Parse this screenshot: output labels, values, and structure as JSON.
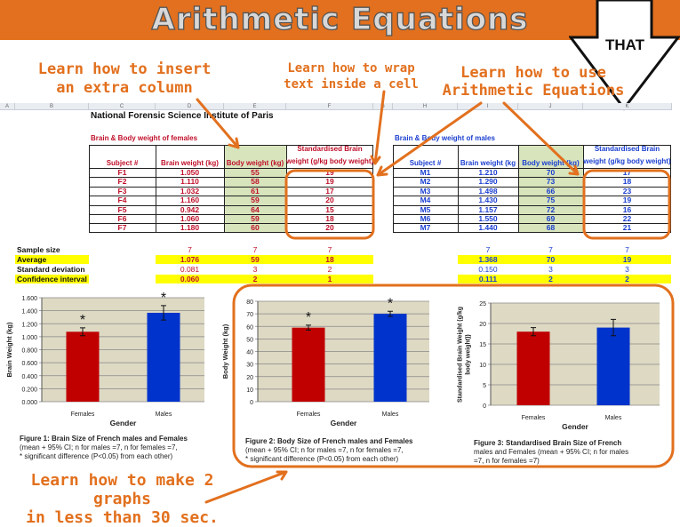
{
  "header": {
    "title": "Arithmetic Equations",
    "arrow_label": "THAT"
  },
  "notes": {
    "insert_column": [
      "Learn how to insert",
      "an extra column"
    ],
    "wrap_text": [
      "Learn how to wrap",
      "text inside a cell"
    ],
    "arithmetic": [
      "Learn how to use",
      "Arithmetic Equations"
    ],
    "graphs": [
      "Learn how to make 2 graphs",
      "in less than 30 sec."
    ]
  },
  "colors": {
    "accent": "#e2701e",
    "female": "#c00000",
    "male": "#0033cc",
    "highlight": "#ffff00",
    "body_col": "#d7e4bc"
  },
  "sheet": {
    "columns": [
      "A",
      "B",
      "C",
      "D",
      "E",
      "F",
      "G",
      "H",
      "I",
      "J",
      "K"
    ],
    "title": "National Forensic Science Institute of Paris",
    "females": {
      "heading": "Brain & Body weight of females",
      "headers": [
        "Subject #",
        "Brain weight (kg)",
        "Body weight (kg)",
        "Standardised Brain",
        "weight (g/kg body weight)"
      ],
      "rows": [
        [
          "F1",
          "1.050",
          "55",
          "19"
        ],
        [
          "F2",
          "1.110",
          "58",
          "19"
        ],
        [
          "F3",
          "1.032",
          "61",
          "17"
        ],
        [
          "F4",
          "1.160",
          "59",
          "20"
        ],
        [
          "F5",
          "0.942",
          "64",
          "15"
        ],
        [
          "F6",
          "1.060",
          "59",
          "18"
        ],
        [
          "F7",
          "1.180",
          "60",
          "20"
        ]
      ],
      "summary": [
        [
          "7",
          "7",
          "7"
        ],
        [
          "1.076",
          "59",
          "18"
        ],
        [
          "0.081",
          "3",
          "2"
        ],
        [
          "0.060",
          "2",
          "1"
        ]
      ]
    },
    "males": {
      "heading": "Brain & Body weight of males",
      "headers": [
        "Subject #",
        "Brain weight (kg",
        "Body weight (kg)",
        "Standardised Brain",
        "weight (g/kg body weight)"
      ],
      "rows": [
        [
          "M1",
          "1.210",
          "70",
          "17"
        ],
        [
          "M2",
          "1.290",
          "73",
          "18"
        ],
        [
          "M3",
          "1.498",
          "66",
          "23"
        ],
        [
          "M4",
          "1.430",
          "75",
          "19"
        ],
        [
          "M5",
          "1.157",
          "72",
          "16"
        ],
        [
          "M6",
          "1.550",
          "69",
          "22"
        ],
        [
          "M7",
          "1.440",
          "68",
          "21"
        ]
      ],
      "summary": [
        [
          "7",
          "7",
          "7"
        ],
        [
          "1.368",
          "70",
          "19"
        ],
        [
          "0.150",
          "3",
          "3"
        ],
        [
          "0.111",
          "2",
          "2"
        ]
      ]
    },
    "summary_labels": [
      "Sample size",
      "Average",
      "Standard deviation",
      "Confidence interval"
    ]
  },
  "chart_data": [
    {
      "type": "bar",
      "categories": [
        "Females",
        "Males"
      ],
      "values": [
        1.076,
        1.368
      ],
      "errors": [
        0.06,
        0.111
      ],
      "significance": [
        "*",
        "*"
      ],
      "xlabel": "Gender",
      "ylabel": "Brain Weight (kg)",
      "ylim": [
        0,
        1.6
      ],
      "ticks": [
        "0.000",
        "0.200",
        "0.400",
        "0.600",
        "0.800",
        "1.000",
        "1.200",
        "1.400",
        "1.600"
      ],
      "grid": true,
      "caption": {
        "bold": "Figure 1: Brain Size of French males and Females",
        "text": [
          "(mean + 95% CI; n for males =7, n for females =7,",
          "* significant difference (P<0.05) from each other)"
        ]
      }
    },
    {
      "type": "bar",
      "categories": [
        "Females",
        "Males"
      ],
      "values": [
        59,
        70
      ],
      "errors": [
        2,
        2
      ],
      "significance": [
        "*",
        "*"
      ],
      "xlabel": "Gender",
      "ylabel": "Body Weight (kg)",
      "ylim": [
        0,
        80
      ],
      "ticks": [
        "0",
        "10",
        "20",
        "30",
        "40",
        "50",
        "60",
        "70",
        "80"
      ],
      "grid": true,
      "caption": {
        "bold": "Figure 2: Body Size of French males and Females",
        "text": [
          "(mean + 95% CI; n for males =7, n for females =7,",
          "* significant difference (P<0.05) from each other)"
        ]
      }
    },
    {
      "type": "bar",
      "categories": [
        "Females",
        "Males"
      ],
      "values": [
        18,
        19
      ],
      "errors": [
        1,
        2
      ],
      "significance": [
        "",
        ""
      ],
      "xlabel": "Gender",
      "ylabel": "Standardised Brain Weight (g/kg body weight))",
      "ylim": [
        0,
        25
      ],
      "ticks": [
        "0",
        "5",
        "10",
        "15",
        "20",
        "25"
      ],
      "grid": true,
      "caption": {
        "bold": "Figure 3: Standardised Brain Size of French",
        "text": [
          "males and Females (mean + 95% CI; n for males",
          "=7, n for females =7)"
        ]
      }
    }
  ]
}
